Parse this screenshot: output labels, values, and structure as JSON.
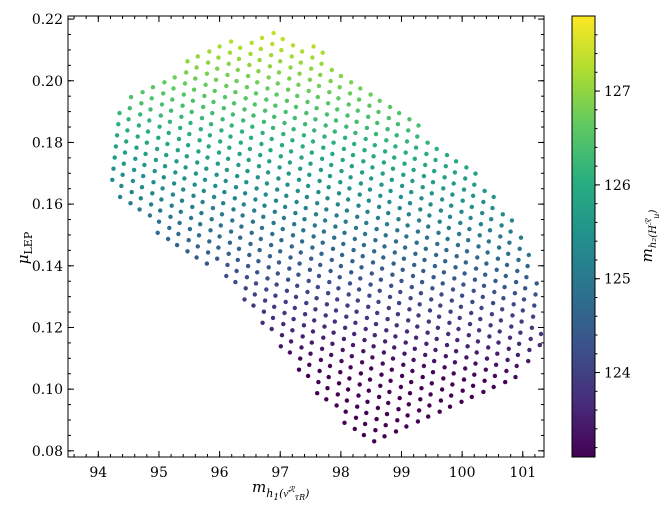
{
  "chart_data": {
    "type": "scatter",
    "title": "",
    "xlabel_main": "m",
    "xlabel_sub": "h",
    "xlabel_sub_idx": "1",
    "xlabel_sub_paren": "(ν͂",
    "xlabel_sub_sup": "ℛ",
    "xlabel_sub_sub": "τR",
    "xlabel_sub_close": ")",
    "ylabel_main": "μ",
    "ylabel_sub": "LEP",
    "colorbar_label_main": "m",
    "colorbar_label_sub": "h₂(H",
    "colorbar_label_sup": "ℛ",
    "colorbar_label_subsub": "u",
    "colorbar_label_close": ")",
    "xlim": [
      93.5,
      101.35
    ],
    "ylim": [
      0.078,
      0.221
    ],
    "xticks": [
      94,
      95,
      96,
      97,
      98,
      99,
      100,
      101
    ],
    "yticks": [
      0.08,
      0.1,
      0.12,
      0.14,
      0.16,
      0.18,
      0.2,
      0.22
    ],
    "ytick_labels": [
      "0.08",
      "0.10",
      "0.12",
      "0.14",
      "0.16",
      "0.18",
      "0.20",
      "0.22"
    ],
    "colorbar_range": [
      123.1,
      127.8
    ],
    "colorbar_ticks": [
      124,
      125,
      126,
      127
    ],
    "colormap": "viridis",
    "grid": false,
    "points_note_in_data_units": "generated lattice region",
    "region": {
      "upper_left": [
        [
          93.75,
          0.179
        ],
        [
          94.5,
          0.195
        ],
        [
          95.5,
          0.207
        ],
        [
          96.3,
          0.214
        ],
        [
          96.9,
          0.216
        ],
        [
          97.6,
          0.211
        ],
        [
          98.2,
          0.202
        ],
        [
          99.0,
          0.19
        ],
        [
          100.0,
          0.175
        ],
        [
          100.9,
          0.155
        ],
        [
          101.3,
          0.132
        ]
      ],
      "lower_right": [
        [
          93.75,
          0.175
        ],
        [
          94.4,
          0.16
        ],
        [
          95.0,
          0.15
        ],
        [
          96.0,
          0.138
        ],
        [
          96.8,
          0.118
        ],
        [
          97.5,
          0.1
        ],
        [
          98.1,
          0.087
        ],
        [
          98.6,
          0.082
        ],
        [
          99.2,
          0.086
        ],
        [
          100.1,
          0.097
        ],
        [
          100.9,
          0.101
        ],
        [
          101.3,
          0.113
        ]
      ]
    }
  }
}
